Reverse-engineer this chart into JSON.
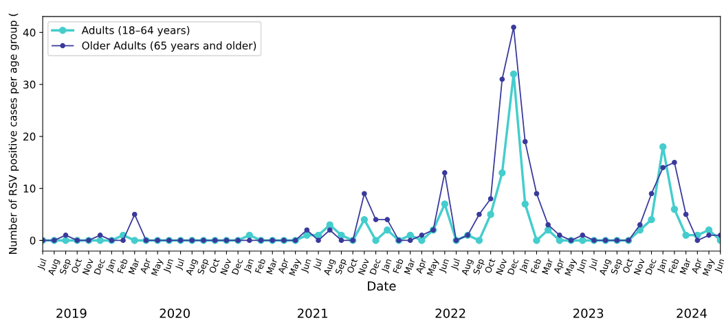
{
  "chart_data": {
    "type": "line",
    "xlabel": "Date",
    "ylabel": "Number of RSV positive cases per age group (",
    "categories": [
      "Jul",
      "Aug",
      "Sep",
      "Oct",
      "Nov",
      "Dec",
      "Jan",
      "Feb",
      "Mar",
      "Apr",
      "May",
      "Jun",
      "Jul",
      "Aug",
      "Sep",
      "Oct",
      "Nov",
      "Dec",
      "Jan",
      "Feb",
      "Mar",
      "Apr",
      "May",
      "Jun",
      "Jul",
      "Aug",
      "Sep",
      "Oct",
      "Nov",
      "Dec",
      "Jan",
      "Feb",
      "Mar",
      "Apr",
      "May",
      "Jun",
      "Jul",
      "Aug",
      "Sep",
      "Oct",
      "Nov",
      "Dec",
      "Jan",
      "Feb",
      "Mar",
      "Apr",
      "May",
      "Jun",
      "Jul",
      "Aug",
      "Sep",
      "Oct",
      "Nov",
      "Dec",
      "Jan",
      "Feb",
      "Mar",
      "Apr",
      "May",
      "Jun"
    ],
    "series": [
      {
        "name": "Adults (18–64 years)",
        "color": "#45cdcd",
        "values": [
          0,
          0,
          0,
          0,
          0,
          0,
          0,
          1,
          0,
          0,
          0,
          0,
          0,
          0,
          0,
          0,
          0,
          0,
          1,
          0,
          0,
          0,
          0,
          1,
          1,
          3,
          1,
          0,
          4,
          0,
          2,
          0,
          1,
          0,
          2,
          7,
          0,
          1,
          0,
          5,
          13,
          32,
          7,
          0,
          2,
          0,
          0,
          0,
          0,
          0,
          0,
          0,
          2,
          4,
          18,
          6,
          1,
          1,
          2,
          0
        ]
      },
      {
        "name": "Older Adults (65 years and older)",
        "color": "#3a3a9c",
        "values": [
          0,
          0,
          1,
          0,
          0,
          1,
          0,
          0,
          5,
          0,
          0,
          0,
          0,
          0,
          0,
          0,
          0,
          0,
          0,
          0,
          0,
          0,
          0,
          2,
          0,
          2,
          0,
          0,
          9,
          4,
          4,
          0,
          0,
          1,
          2,
          13,
          0,
          1,
          5,
          8,
          31,
          41,
          19,
          9,
          3,
          1,
          0,
          1,
          0,
          0,
          0,
          0,
          3,
          9,
          14,
          15,
          5,
          0,
          1,
          1
        ]
      }
    ],
    "ylim": [
      -2.05,
      43.05
    ],
    "yticks": [
      0,
      10,
      20,
      30,
      40
    ],
    "annotations": [
      "2019",
      "2020",
      "2021",
      "2022",
      "2023",
      "2024"
    ],
    "legend": "top left",
    "marker": "circle",
    "line_style": "solid",
    "grid": false
  }
}
